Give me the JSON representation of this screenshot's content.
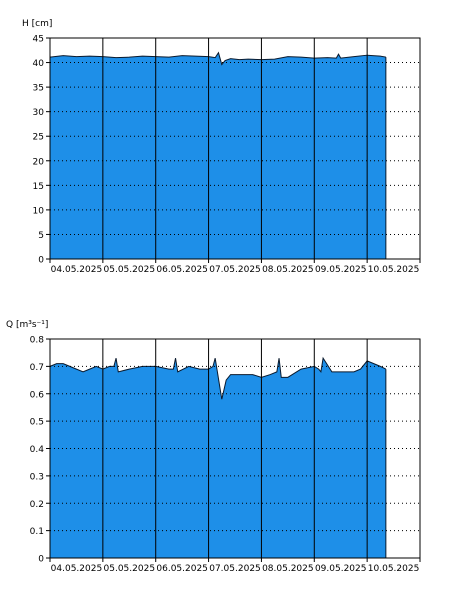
{
  "colors": {
    "fill": "#1e8fe8",
    "outline": "#0a1a2e",
    "frame": "#000000",
    "grid": "#000000"
  },
  "chart_data": [
    {
      "type": "area",
      "ylabel": "H [cm]",
      "ylim": [
        0,
        45
      ],
      "yticks": [
        0,
        5,
        10,
        15,
        20,
        25,
        30,
        35,
        40,
        45
      ],
      "xlim": [
        "2025-05-04 00:00",
        "2025-05-11 00:00"
      ],
      "x_tick_labels": [
        "04.05.2025",
        "05.05.2025",
        "06.05.2025",
        "07.05.2025",
        "08.05.2025",
        "09.05.2025",
        "10.05.2025"
      ],
      "grid": "horizontal dotted, vertical solid at midnight",
      "series": [
        {
          "x": [
            "2025-05-04 00:00",
            "2025-05-04 06:00",
            "2025-05-04 12:00",
            "2025-05-04 18:00",
            "2025-05-05 00:00",
            "2025-05-05 06:00",
            "2025-05-05 12:00",
            "2025-05-05 18:00",
            "2025-05-06 00:00",
            "2025-05-06 06:00",
            "2025-05-06 12:00",
            "2025-05-06 18:00",
            "2025-05-07 00:00",
            "2025-05-07 03:00",
            "2025-05-07 04:30",
            "2025-05-07 06:00",
            "2025-05-07 07:30",
            "2025-05-07 10:00",
            "2025-05-07 14:00",
            "2025-05-07 18:00",
            "2025-05-08 00:00",
            "2025-05-08 06:00",
            "2025-05-08 12:00",
            "2025-05-08 18:00",
            "2025-05-09 00:00",
            "2025-05-09 06:00",
            "2025-05-09 10:00",
            "2025-05-09 11:00",
            "2025-05-09 12:00",
            "2025-05-09 18:00",
            "2025-05-10 00:00",
            "2025-05-10 06:00",
            "2025-05-10 08:30"
          ],
          "values": [
            41.1,
            41.4,
            41.2,
            41.3,
            41.2,
            41.0,
            41.1,
            41.3,
            41.2,
            41.1,
            41.4,
            41.3,
            41.2,
            41.0,
            42.0,
            39.6,
            40.4,
            40.8,
            40.6,
            40.7,
            40.6,
            40.7,
            41.2,
            41.1,
            40.9,
            41.0,
            40.9,
            41.7,
            40.9,
            41.2,
            41.5,
            41.3,
            41.1
          ]
        }
      ]
    },
    {
      "type": "area",
      "ylabel": "Q [m³s⁻¹]",
      "ylim": [
        0,
        0.8
      ],
      "yticks": [
        0,
        0.1,
        0.2,
        0.3,
        0.4,
        0.5,
        0.6,
        0.7,
        0.8
      ],
      "ytick_labels": [
        "0",
        "0.1",
        "0.2",
        "0.3",
        "0.4",
        "0.5",
        "0.6",
        "0.7",
        "0.8"
      ],
      "xlim": [
        "2025-05-04 00:00",
        "2025-05-11 00:00"
      ],
      "x_tick_labels": [
        "04.05.2025",
        "05.05.2025",
        "06.05.2025",
        "07.05.2025",
        "08.05.2025",
        "09.05.2025",
        "10.05.2025"
      ],
      "grid": "horizontal dotted, vertical solid at midnight",
      "series": [
        {
          "x": [
            "2025-05-04 00:00",
            "2025-05-04 03:00",
            "2025-05-04 06:00",
            "2025-05-04 09:00",
            "2025-05-04 12:00",
            "2025-05-04 15:00",
            "2025-05-04 18:00",
            "2025-05-04 21:00",
            "2025-05-05 00:00",
            "2025-05-05 03:00",
            "2025-05-05 05:00",
            "2025-05-05 06:00",
            "2025-05-05 07:00",
            "2025-05-05 12:00",
            "2025-05-05 18:00",
            "2025-05-06 00:00",
            "2025-05-06 06:00",
            "2025-05-06 08:00",
            "2025-05-06 09:00",
            "2025-05-06 10:00",
            "2025-05-06 15:00",
            "2025-05-06 20:00",
            "2025-05-07 00:00",
            "2025-05-07 02:00",
            "2025-05-07 03:00",
            "2025-05-07 04:00",
            "2025-05-07 06:00",
            "2025-05-07 08:00",
            "2025-05-07 10:00",
            "2025-05-07 12:00",
            "2025-05-07 16:00",
            "2025-05-07 20:00",
            "2025-05-08 00:00",
            "2025-05-08 04:00",
            "2025-05-08 07:00",
            "2025-05-08 08:00",
            "2025-05-08 09:00",
            "2025-05-08 12:00",
            "2025-05-08 18:00",
            "2025-05-09 00:00",
            "2025-05-09 02:00",
            "2025-05-09 03:00",
            "2025-05-09 04:00",
            "2025-05-09 08:00",
            "2025-05-09 12:00",
            "2025-05-09 18:00",
            "2025-05-09 21:00",
            "2025-05-10 00:00",
            "2025-05-10 03:00",
            "2025-05-10 06:00",
            "2025-05-10 08:30"
          ],
          "values": [
            0.7,
            0.71,
            0.71,
            0.7,
            0.69,
            0.68,
            0.69,
            0.7,
            0.69,
            0.7,
            0.7,
            0.73,
            0.68,
            0.69,
            0.7,
            0.7,
            0.69,
            0.69,
            0.73,
            0.68,
            0.7,
            0.69,
            0.69,
            0.7,
            0.73,
            0.68,
            0.58,
            0.65,
            0.67,
            0.67,
            0.67,
            0.67,
            0.66,
            0.67,
            0.68,
            0.73,
            0.66,
            0.66,
            0.69,
            0.7,
            0.69,
            0.68,
            0.73,
            0.68,
            0.68,
            0.68,
            0.69,
            0.72,
            0.71,
            0.7,
            0.69
          ]
        }
      ]
    }
  ]
}
